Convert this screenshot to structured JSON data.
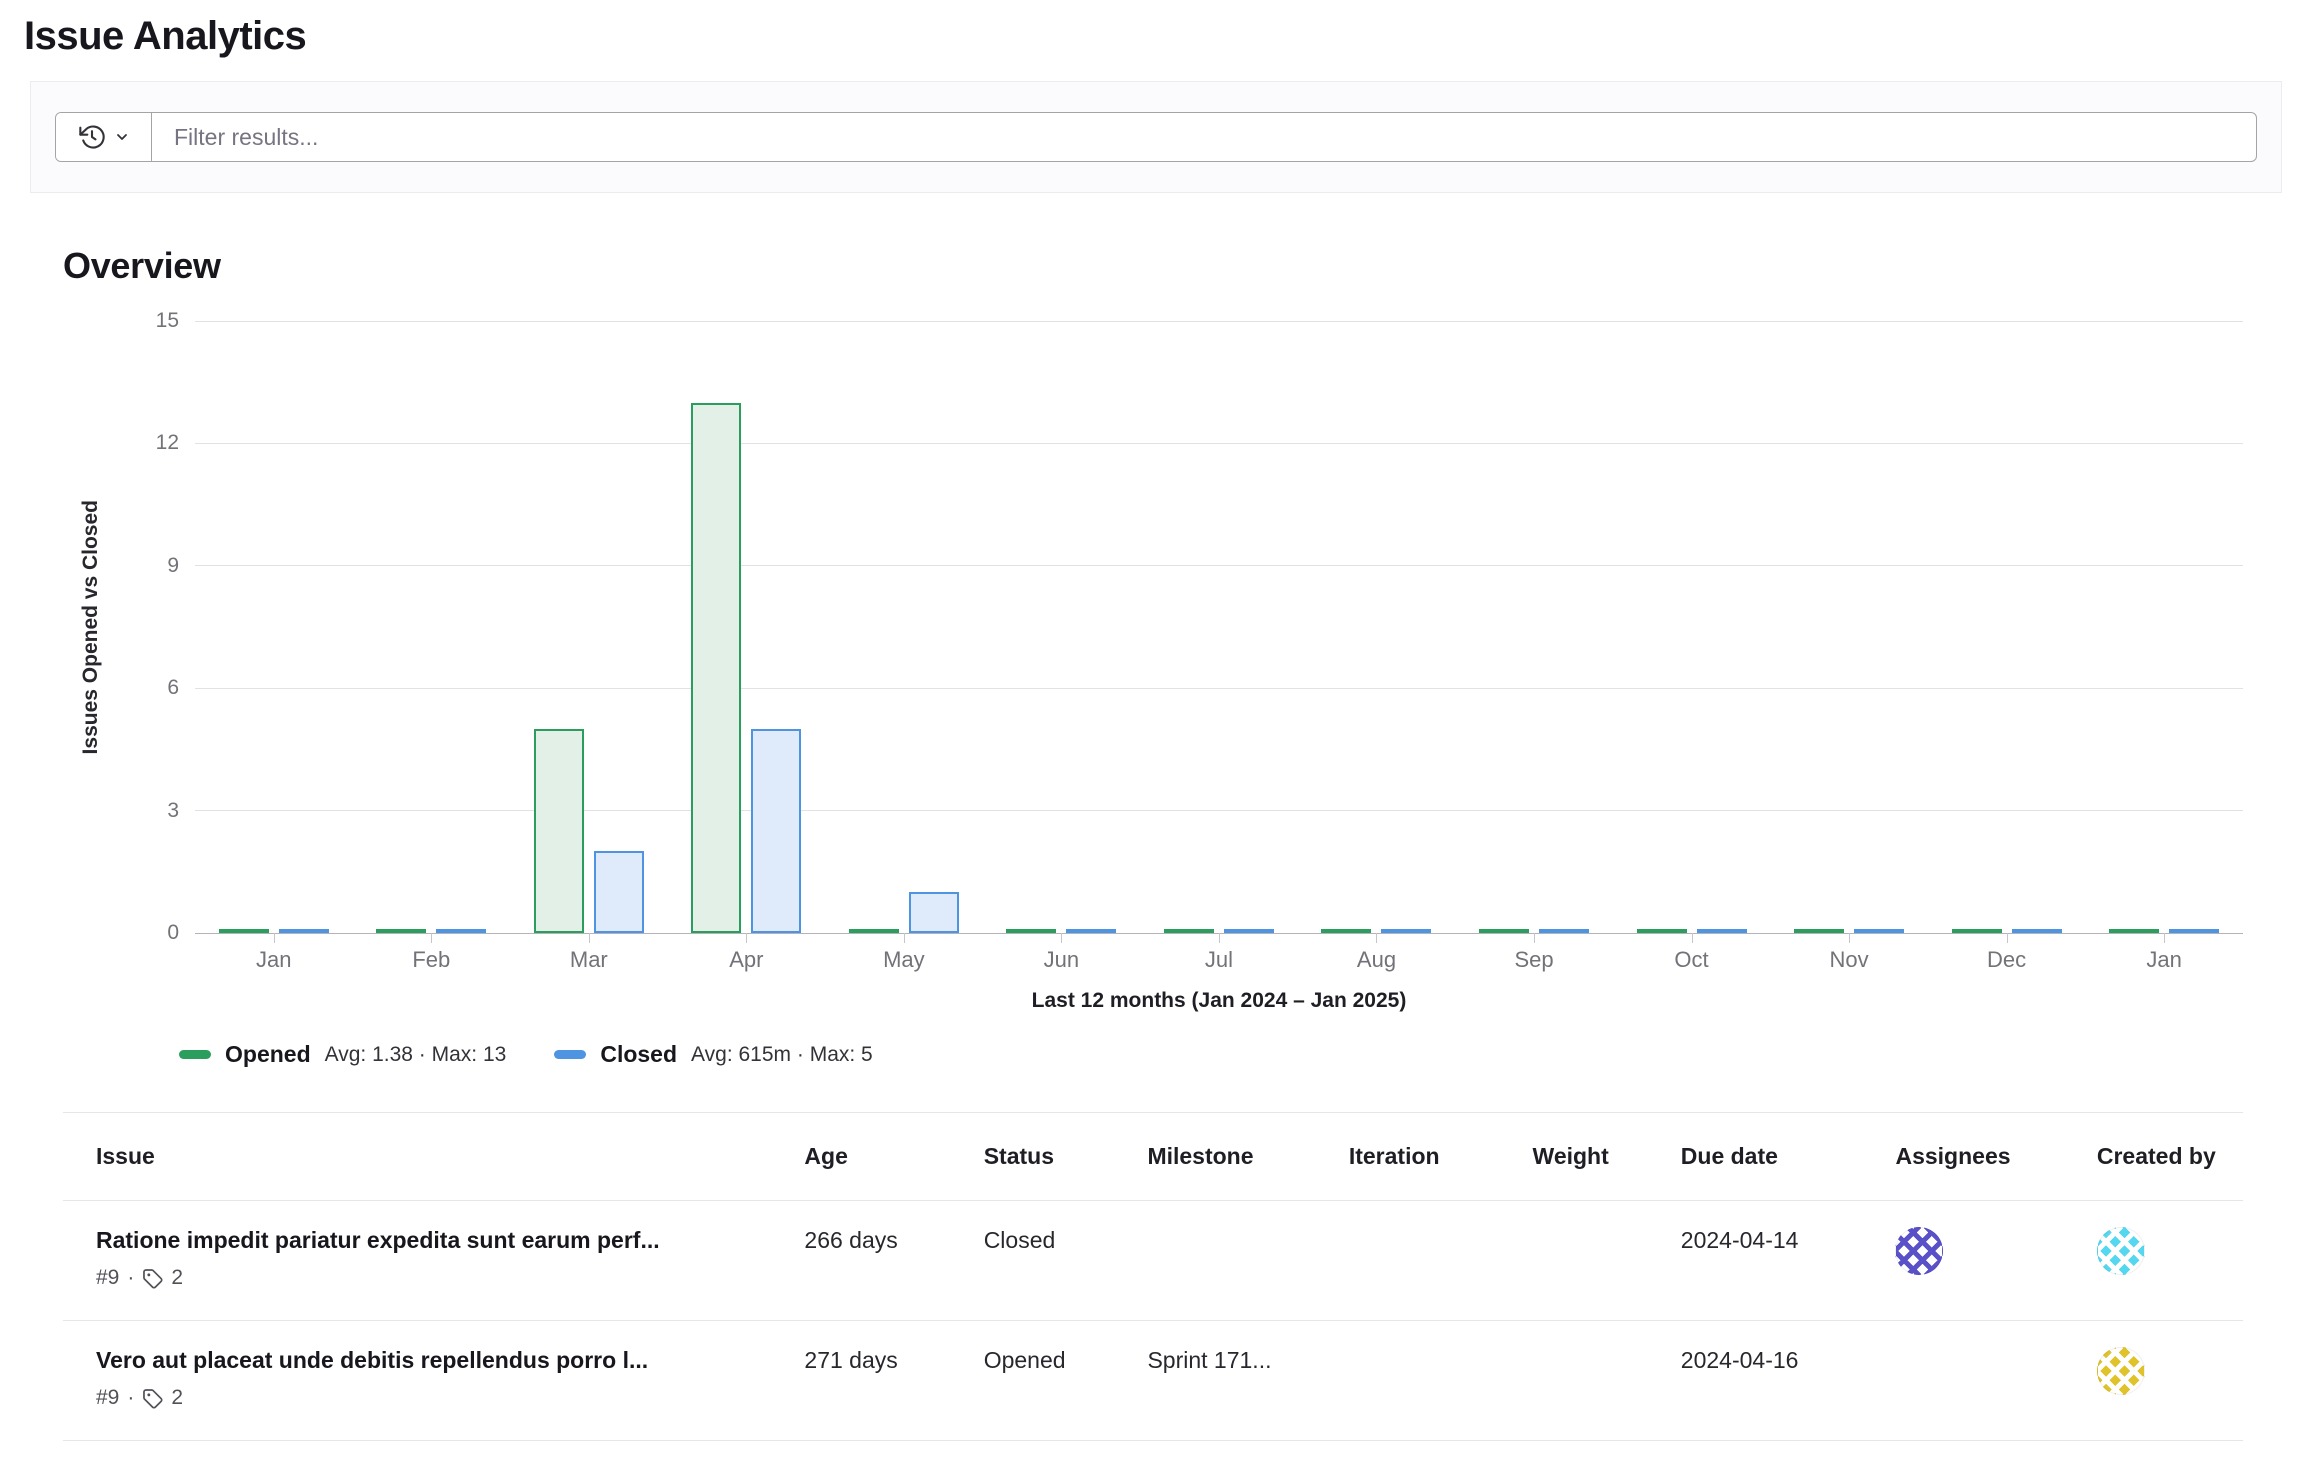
{
  "page": {
    "title": "Issue Analytics"
  },
  "filter": {
    "placeholder": "Filter results...",
    "history_icon": "history-icon",
    "chevron_icon": "chevron-down-icon"
  },
  "overview": {
    "heading": "Overview"
  },
  "chart_data": {
    "type": "bar",
    "title": "Overview",
    "ylabel": "Issues Opened vs Closed",
    "xlabel": "Last 12 months (Jan 2024 – Jan 2025)",
    "categories": [
      "Jan",
      "Feb",
      "Mar",
      "Apr",
      "May",
      "Jun",
      "Jul",
      "Aug",
      "Sep",
      "Oct",
      "Nov",
      "Dec",
      "Jan"
    ],
    "series": [
      {
        "name": "Opened",
        "meta": "Avg: 1.38 · Max: 13",
        "color": "#2b9e5e",
        "fill": "#e2f0e8",
        "values": [
          0,
          0,
          5,
          13,
          0,
          0,
          0,
          0,
          0,
          0,
          0,
          0,
          0
        ]
      },
      {
        "name": "Closed",
        "meta": "Avg: 615m · Max: 5",
        "color": "#4f94e0",
        "fill": "#dfeafa",
        "values": [
          0,
          0,
          2,
          5,
          1,
          0,
          0,
          0,
          0,
          0,
          0,
          0,
          0
        ]
      }
    ],
    "yticks": [
      15,
      12,
      9,
      6,
      3,
      0
    ],
    "ylim": [
      0,
      15
    ],
    "grid": true,
    "legend_position": "bottom"
  },
  "table": {
    "columns": [
      "Issue",
      "Age",
      "Status",
      "Milestone",
      "Iteration",
      "Weight",
      "Due date",
      "Assignees",
      "Created by"
    ],
    "rows": [
      {
        "title": "Ratione impedit pariatur expedita sunt earum perf...",
        "ref": "#9",
        "separator": "·",
        "label_count": "2",
        "age": "266 days",
        "status": "Closed",
        "milestone": "",
        "iteration": "",
        "weight": "",
        "due_date": "2024-04-14",
        "assignee_avatar": {
          "bg": "#ffffff",
          "fg": "#5a50c8"
        },
        "created_by_avatar": {
          "bg": "#55d7ef",
          "fg": "#ffffff"
        }
      },
      {
        "title": "Vero aut placeat unde debitis repellendus porro l...",
        "ref": "#9",
        "separator": "·",
        "label_count": "2",
        "age": "271 days",
        "status": "Opened",
        "milestone": "Sprint 171...",
        "iteration": "",
        "weight": "",
        "due_date": "2024-04-16",
        "assignee_avatar": null,
        "created_by_avatar": {
          "bg": "#e0c32a",
          "fg": "#ffffff"
        }
      }
    ]
  },
  "icons": {
    "history": "history-icon",
    "chevron_down": "chevron-down-icon",
    "label_tag": "label-tag-icon"
  }
}
